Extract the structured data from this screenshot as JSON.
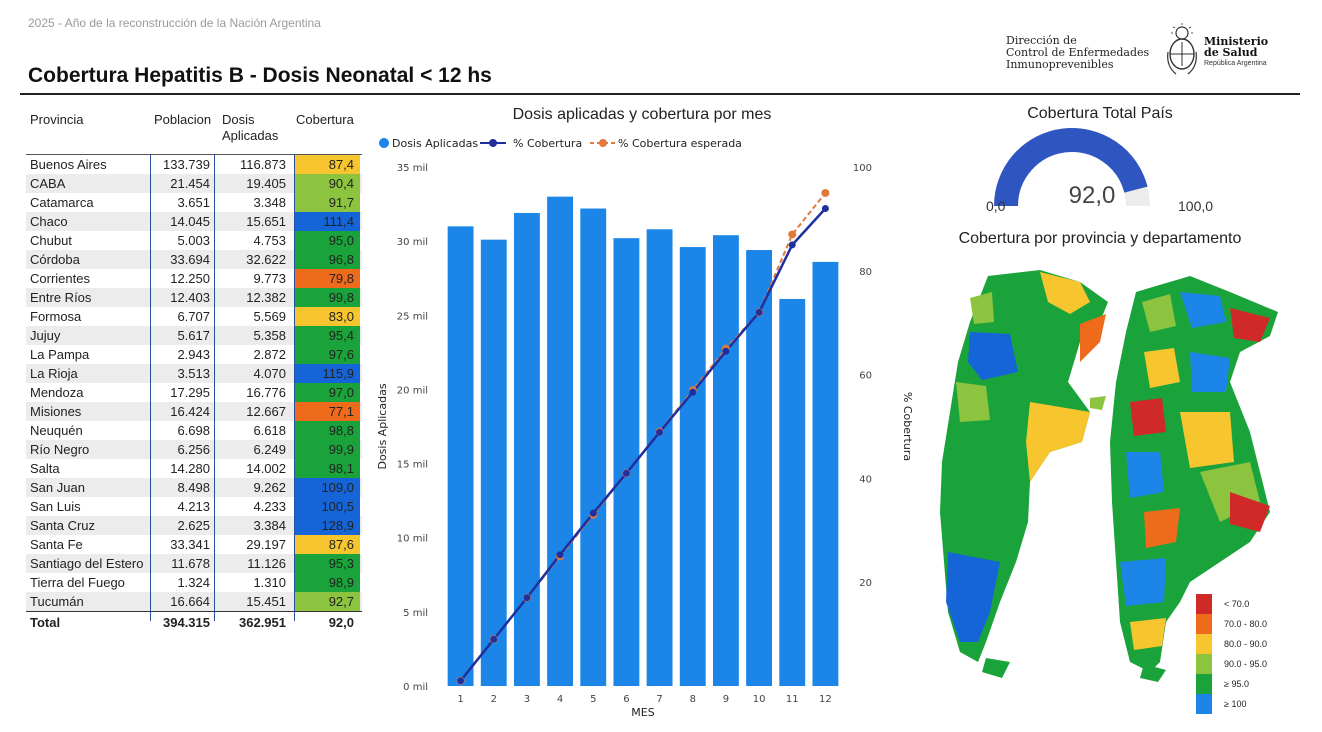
{
  "header": {
    "tagline": "2025 - Año de la reconstrucción de la Nación Argentina",
    "title": "Cobertura Hepatitis B - Dosis Neonatal < 12 hs",
    "dept_line1": "Dirección de",
    "dept_line2": "Control de Enfermedades",
    "dept_line3": "Inmunoprevenibles",
    "ministry_line1": "Ministerio",
    "ministry_line2": "de Salud",
    "ministry_sub": "República Argentina"
  },
  "table": {
    "headers": {
      "provincia": "Provincia",
      "poblacion": "Poblacion",
      "dosis_1": "Dosis",
      "dosis_2": "Aplicadas",
      "cobertura": "Cobertura"
    },
    "rows": [
      {
        "provincia": "Buenos Aires",
        "poblacion": "133.739",
        "dosis": "116.873",
        "cobertura": "87,4",
        "color": "#f7c62f"
      },
      {
        "provincia": "CABA",
        "poblacion": "21.454",
        "dosis": "19.405",
        "cobertura": "90,4",
        "color": "#8cc43f"
      },
      {
        "provincia": "Catamarca",
        "poblacion": "3.651",
        "dosis": "3.348",
        "cobertura": "91,7",
        "color": "#8cc43f"
      },
      {
        "provincia": "Chaco",
        "poblacion": "14.045",
        "dosis": "15.651",
        "cobertura": "111,4",
        "color": "#1565d8"
      },
      {
        "provincia": "Chubut",
        "poblacion": "5.003",
        "dosis": "4.753",
        "cobertura": "95,0",
        "color": "#1aa33a"
      },
      {
        "provincia": "Córdoba",
        "poblacion": "33.694",
        "dosis": "32.622",
        "cobertura": "96,8",
        "color": "#1aa33a"
      },
      {
        "provincia": "Corrientes",
        "poblacion": "12.250",
        "dosis": "9.773",
        "cobertura": "79,8",
        "color": "#ee6b1c"
      },
      {
        "provincia": "Entre Ríos",
        "poblacion": "12.403",
        "dosis": "12.382",
        "cobertura": "99,8",
        "color": "#1aa33a"
      },
      {
        "provincia": "Formosa",
        "poblacion": "6.707",
        "dosis": "5.569",
        "cobertura": "83,0",
        "color": "#f7c62f"
      },
      {
        "provincia": "Jujuy",
        "poblacion": "5.617",
        "dosis": "5.358",
        "cobertura": "95,4",
        "color": "#1aa33a"
      },
      {
        "provincia": "La Pampa",
        "poblacion": "2.943",
        "dosis": "2.872",
        "cobertura": "97,6",
        "color": "#1aa33a"
      },
      {
        "provincia": "La Rioja",
        "poblacion": "3.513",
        "dosis": "4.070",
        "cobertura": "115,9",
        "color": "#1565d8"
      },
      {
        "provincia": "Mendoza",
        "poblacion": "17.295",
        "dosis": "16.776",
        "cobertura": "97,0",
        "color": "#1aa33a"
      },
      {
        "provincia": "Misiones",
        "poblacion": "16.424",
        "dosis": "12.667",
        "cobertura": "77,1",
        "color": "#ee6b1c"
      },
      {
        "provincia": "Neuquén",
        "poblacion": "6.698",
        "dosis": "6.618",
        "cobertura": "98,8",
        "color": "#1aa33a"
      },
      {
        "provincia": "Río Negro",
        "poblacion": "6.256",
        "dosis": "6.249",
        "cobertura": "99,9",
        "color": "#1aa33a"
      },
      {
        "provincia": "Salta",
        "poblacion": "14.280",
        "dosis": "14.002",
        "cobertura": "98,1",
        "color": "#1aa33a"
      },
      {
        "provincia": "San Juan",
        "poblacion": "8.498",
        "dosis": "9.262",
        "cobertura": "109,0",
        "color": "#1565d8"
      },
      {
        "provincia": "San Luis",
        "poblacion": "4.213",
        "dosis": "4.233",
        "cobertura": "100,5",
        "color": "#1565d8"
      },
      {
        "provincia": "Santa Cruz",
        "poblacion": "2.625",
        "dosis": "3.384",
        "cobertura": "128,9",
        "color": "#1565d8"
      },
      {
        "provincia": "Santa Fe",
        "poblacion": "33.341",
        "dosis": "29.197",
        "cobertura": "87,6",
        "color": "#f7c62f"
      },
      {
        "provincia": "Santiago del Estero",
        "poblacion": "11.678",
        "dosis": "11.126",
        "cobertura": "95,3",
        "color": "#1aa33a"
      },
      {
        "provincia": "Tierra del Fuego",
        "poblacion": "1.324",
        "dosis": "1.310",
        "cobertura": "98,9",
        "color": "#1aa33a"
      },
      {
        "provincia": "Tucumán",
        "poblacion": "16.664",
        "dosis": "15.451",
        "cobertura": "92,7",
        "color": "#8cc43f"
      }
    ],
    "total": {
      "label": "Total",
      "poblacion": "394.315",
      "dosis": "362.951",
      "cobertura": "92,0"
    }
  },
  "gauge": {
    "title": "Cobertura Total País",
    "value": "92,0",
    "min": "0,0",
    "max": "100,0",
    "fraction": 0.92,
    "fill_color": "#2f55c0",
    "track_color": "#ececec"
  },
  "map": {
    "title": "Cobertura por provincia y departamento",
    "legend": [
      {
        "label": "< 70.0",
        "color": "#cf2a27"
      },
      {
        "label": "70.0 - 80.0",
        "color": "#ee6b1c"
      },
      {
        "label": "80.0 - 90.0",
        "color": "#f7c62f"
      },
      {
        "label": "90.0 - 95.0",
        "color": "#8cc43f"
      },
      {
        "label": "≥ 95.0",
        "color": "#1aa33a"
      },
      {
        "label": "≥ 100",
        "color": "#1b86e8"
      }
    ]
  },
  "chart_data": {
    "type": "bar",
    "title": "Dosis aplicadas y cobertura por mes",
    "xlabel": "MES",
    "ylabel": "Dosis Aplicadas",
    "y2label": "% Cobertura",
    "categories": [
      "1",
      "2",
      "3",
      "4",
      "5",
      "6",
      "7",
      "8",
      "9",
      "10",
      "11",
      "12"
    ],
    "ylim": [
      0,
      35000
    ],
    "y2lim": [
      0,
      100
    ],
    "y_ticks": [
      {
        "value": 0,
        "label": "0 mil"
      },
      {
        "value": 5000,
        "label": "5 mil"
      },
      {
        "value": 10000,
        "label": "10 mil"
      },
      {
        "value": 15000,
        "label": "15 mil"
      },
      {
        "value": 20000,
        "label": "20 mil"
      },
      {
        "value": 25000,
        "label": "25 mil"
      },
      {
        "value": 30000,
        "label": "30 mil"
      },
      {
        "value": 35000,
        "label": "35 mil"
      }
    ],
    "y2_ticks": [
      {
        "value": 20,
        "label": "20"
      },
      {
        "value": 40,
        "label": "40"
      },
      {
        "value": 60,
        "label": "60"
      },
      {
        "value": 80,
        "label": "80"
      },
      {
        "value": 100,
        "label": "100"
      }
    ],
    "series": [
      {
        "name": "Dosis Aplicadas",
        "kind": "bar",
        "color": "#1b86e8",
        "values": [
          31000,
          30100,
          31900,
          33000,
          32200,
          30200,
          30800,
          29600,
          30400,
          29400,
          26100,
          28600
        ]
      },
      {
        "name": "% Cobertura",
        "kind": "line",
        "color": "#1f2f9e",
        "values": [
          1.0,
          9.0,
          17.0,
          25.3,
          33.3,
          41.0,
          48.9,
          56.6,
          64.5,
          72.0,
          85.0,
          92.0
        ]
      },
      {
        "name": "% Cobertura esperada",
        "kind": "line-dashed",
        "color": "#e07a3c",
        "values": [
          1.0,
          9.0,
          17.0,
          25.0,
          33.0,
          41.0,
          49.0,
          57.0,
          65.0,
          72.0,
          87.0,
          95.0
        ]
      }
    ],
    "legend_position": "top-left",
    "grid": false
  }
}
